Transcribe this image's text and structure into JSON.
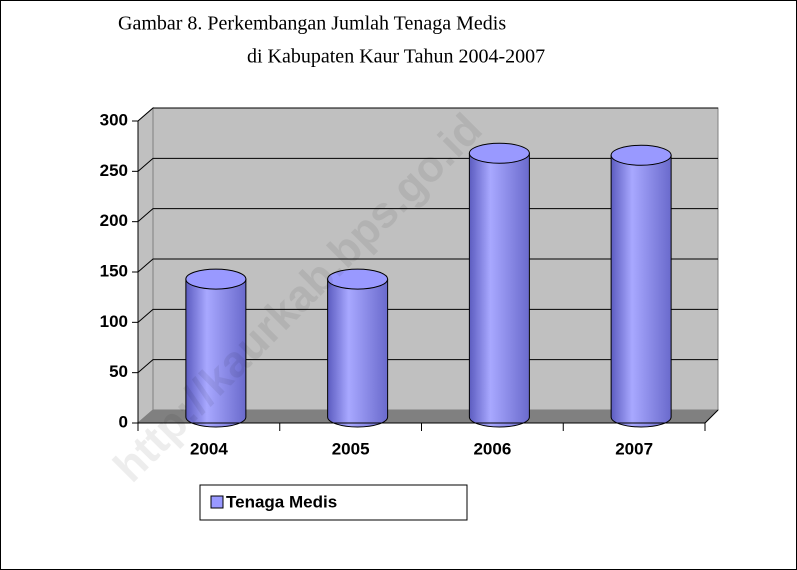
{
  "chart_data": {
    "type": "bar3d",
    "title": "Gambar 8. Perkembangan Jumlah Tenaga Medis",
    "subtitle": "di Kabupaten Kaur Tahun 2004-2007",
    "watermark": "http://kaurkab.bps.go.id",
    "categories": [
      "2004",
      "2005",
      "2006",
      "2007"
    ],
    "series": [
      {
        "name": "Tenaga Medis",
        "color": "#9999ff",
        "values": [
          137,
          137,
          262,
          260
        ]
      }
    ],
    "ylim": [
      0,
      300
    ],
    "yticks": [
      0,
      50,
      100,
      150,
      200,
      250,
      300
    ],
    "grid": true,
    "legend": "bottom"
  }
}
